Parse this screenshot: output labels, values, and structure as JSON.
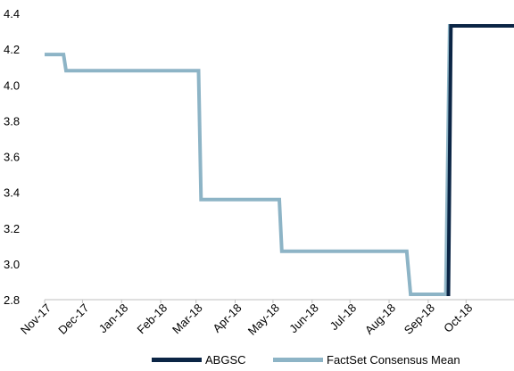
{
  "chart_data": {
    "type": "line",
    "title": "",
    "xlabel": "",
    "ylabel": "",
    "ylim": [
      2.8,
      4.4
    ],
    "yticks": [
      "2.8",
      "3.0",
      "3.2",
      "3.4",
      "3.6",
      "3.8",
      "4.0",
      "4.2",
      "4.4"
    ],
    "xticks": [
      "Nov-17",
      "Dec-17",
      "Jan-18",
      "Feb-18",
      "Mar-18",
      "Apr-18",
      "May-18",
      "Jun-18",
      "Jul-18",
      "Aug-18",
      "Sep-18",
      "Oct-18"
    ],
    "grid": false,
    "legend_position": "bottom",
    "series": [
      {
        "name": "ABGSC",
        "color": "#0b2545",
        "points": [
          {
            "x": "2018-09-17",
            "y": 2.82
          },
          {
            "x": "2018-09-19",
            "y": 4.33
          },
          {
            "x": "2018-11-08",
            "y": 4.33
          }
        ]
      },
      {
        "name": "FactSet Consensus Mean",
        "color": "#8db4c6",
        "points": [
          {
            "x": "2017-11-01",
            "y": 4.17
          },
          {
            "x": "2017-11-16",
            "y": 4.17
          },
          {
            "x": "2017-11-18",
            "y": 4.08
          },
          {
            "x": "2018-03-03",
            "y": 4.08
          },
          {
            "x": "2018-03-05",
            "y": 3.36
          },
          {
            "x": "2018-05-06",
            "y": 3.36
          },
          {
            "x": "2018-05-08",
            "y": 3.07
          },
          {
            "x": "2018-08-15",
            "y": 3.07
          },
          {
            "x": "2018-08-18",
            "y": 2.83
          },
          {
            "x": "2018-09-15",
            "y": 2.83
          },
          {
            "x": "2018-09-18",
            "y": 4.33
          },
          {
            "x": "2018-11-08",
            "y": 4.33
          }
        ]
      }
    ]
  }
}
